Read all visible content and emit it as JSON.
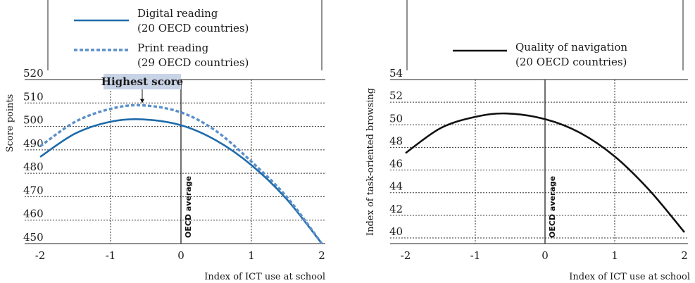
{
  "chart_data": [
    {
      "type": "line",
      "xlabel": "Index of ICT use at school",
      "ylabel": "Score points",
      "xlim": [
        -2,
        2
      ],
      "ylim": [
        450,
        520
      ],
      "xticks": [
        "-2",
        "-1",
        "0",
        "1",
        "2"
      ],
      "yticks": [
        "450",
        "460",
        "470",
        "480",
        "490",
        "500",
        "510",
        "520"
      ],
      "grid": true,
      "legend_position": "top",
      "vertical_marker": {
        "x": 0,
        "label": "OECD average"
      },
      "annotation": {
        "text": "Highest score",
        "x": -0.55,
        "y": 509
      },
      "series": [
        {
          "name": "Digital reading",
          "name_line2": "(20 OECD countries)",
          "style": "solid",
          "color": "#1f6bab",
          "x": [
            -2,
            -1.5,
            -1,
            -0.55,
            0,
            0.5,
            1,
            1.5,
            2
          ],
          "values": [
            487,
            497,
            502,
            503,
            500.5,
            494,
            483.5,
            469,
            450
          ]
        },
        {
          "name": "Print reading",
          "name_line2": "(29 OECD countries)",
          "style": "dashed",
          "color": "#5b8fc9",
          "x": [
            -2,
            -1.5,
            -1,
            -0.55,
            0,
            0.5,
            1,
            1.5,
            2
          ],
          "values": [
            491.5,
            502,
            507.5,
            509,
            506,
            498,
            485,
            470,
            450
          ]
        }
      ]
    },
    {
      "type": "line",
      "xlabel": "Index of ICT use at school",
      "ylabel": "Index of task-oriented browsing",
      "xlim": [
        -2,
        2
      ],
      "ylim": [
        39.5,
        54
      ],
      "xticks": [
        "-2",
        "-1",
        "0",
        "1",
        "2"
      ],
      "yticks": [
        "40",
        "42",
        "44",
        "46",
        "48",
        "50",
        "52",
        "54"
      ],
      "grid": true,
      "legend_position": "top",
      "vertical_marker": {
        "x": 0,
        "label": "OECD average"
      },
      "series": [
        {
          "name": "Quality of navigation",
          "name_line2": "(20 OECD countries)",
          "style": "solid",
          "color": "#111111",
          "x": [
            -2,
            -1.5,
            -1,
            -0.55,
            0,
            0.5,
            1,
            1.5,
            2
          ],
          "values": [
            47.5,
            49.7,
            50.7,
            51,
            50.5,
            49.3,
            47.2,
            44.2,
            40.5
          ]
        }
      ]
    }
  ]
}
